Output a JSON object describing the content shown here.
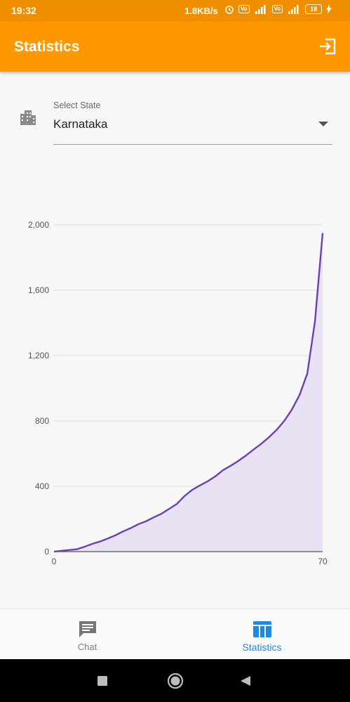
{
  "status_bar": {
    "time": "19:32",
    "network_speed": "1.8KB/s",
    "battery_level": "18",
    "icons": [
      "alarm-icon",
      "volte-icon",
      "signal-4g-icon",
      "volte-icon",
      "signal-icon",
      "battery-icon",
      "charging-icon"
    ]
  },
  "app_bar": {
    "title": "Statistics",
    "action_icon": "logout-icon",
    "color": "#ff9800"
  },
  "state_select": {
    "label": "Select State",
    "selected": "Karnataka",
    "icon": "building-icon"
  },
  "chart_data": {
    "type": "area",
    "x": [
      0,
      2,
      4,
      6,
      8,
      10,
      12,
      14,
      16,
      18,
      20,
      22,
      24,
      26,
      28,
      30,
      32,
      34,
      36,
      38,
      40,
      42,
      44,
      46,
      48,
      50,
      52,
      54,
      56,
      58,
      60,
      62,
      64,
      66,
      68,
      70
    ],
    "values": [
      0,
      5,
      10,
      15,
      30,
      48,
      62,
      80,
      100,
      124,
      144,
      168,
      186,
      210,
      232,
      262,
      292,
      340,
      378,
      405,
      430,
      460,
      498,
      525,
      555,
      588,
      625,
      660,
      700,
      745,
      800,
      870,
      960,
      1090,
      1410,
      1950
    ],
    "xlim": [
      0,
      70
    ],
    "ylim": [
      0,
      2000
    ],
    "x_ticks": [
      "0",
      "70"
    ],
    "y_ticks": [
      "0",
      "400",
      "800",
      "1,200",
      "1,600",
      "2,000"
    ],
    "line_color": "#6c3fb5",
    "fill_color": "#e9e2f5",
    "grid": true
  },
  "bottom_nav": {
    "items": [
      {
        "label": "Chat",
        "icon": "chat-icon",
        "active": false
      },
      {
        "label": "Statistics",
        "icon": "statistics-icon",
        "active": true
      }
    ],
    "active_color": "#1e88e5"
  },
  "system_nav": {
    "buttons": [
      "recents-icon",
      "home-icon",
      "back-icon"
    ]
  }
}
